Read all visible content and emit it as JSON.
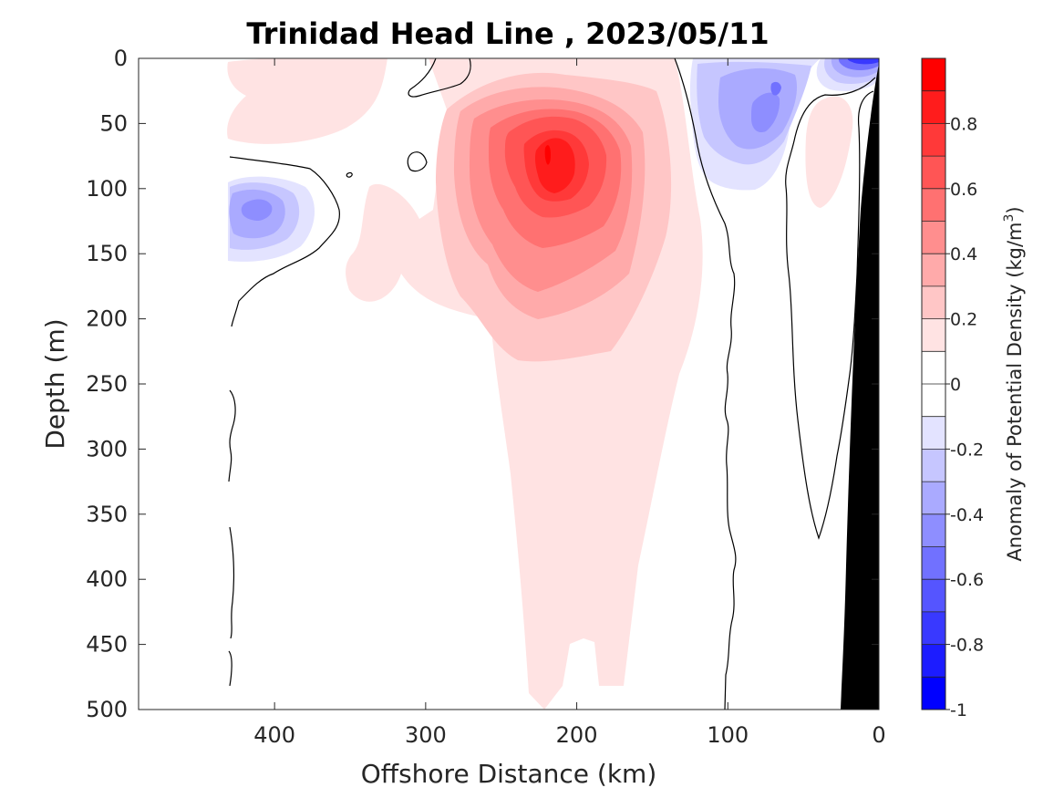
{
  "chart_data": {
    "type": "heatmap",
    "subtype": "filled-contour depth section",
    "title": "Trinidad Head Line , 2023/05/11",
    "xlabel": "Offshore Distance (km)",
    "ylabel": "Depth (m)",
    "xlim": [
      490,
      0
    ],
    "ylim": [
      0,
      500
    ],
    "x_direction": "reversed",
    "y_direction": "reversed (depth increases downward)",
    "x_ticks": [
      400,
      300,
      200,
      100,
      0
    ],
    "y_ticks": [
      0,
      50,
      100,
      150,
      200,
      250,
      300,
      350,
      400,
      450,
      500
    ],
    "colorbar": {
      "label_main": "Anomaly of Potential Density (kg/m",
      "label_sup": "3",
      "label_close": ")",
      "range": [
        -1,
        1
      ],
      "ticks": [
        "0.8",
        "0.6",
        "0.4",
        "0.2",
        "0",
        "-0.2",
        "-0.4",
        "-0.6",
        "-0.8",
        "-1"
      ],
      "tick_values": [
        0.8,
        0.6,
        0.4,
        0.2,
        0,
        -0.2,
        -0.4,
        -0.6,
        -0.8,
        -1
      ],
      "level_step": 0.1,
      "colors": [
        "#0000ff",
        "#1c1cff",
        "#3939ff",
        "#5555ff",
        "#7171ff",
        "#8e8eff",
        "#aaaaff",
        "#c6c6ff",
        "#e3e3ff",
        "#ffffff",
        "#ffffff",
        "#ffe3e3",
        "#ffc6c6",
        "#ffaaaa",
        "#ff8e8e",
        "#ff7171",
        "#ff5555",
        "#ff3939",
        "#ff1c1c",
        "#ff0000"
      ]
    },
    "bathymetry_color": "#000000",
    "features": [
      {
        "kind": "positive anomaly core",
        "distance_km": 218,
        "depth_m": 80,
        "peak_value": 0.95
      },
      {
        "kind": "positive anomaly tongue",
        "distance_km": [
          170,
          270
        ],
        "depth_m": [
          100,
          500
        ],
        "value": 0.1
      },
      {
        "kind": "negative anomaly",
        "distance_km": 410,
        "depth_m": 115,
        "min_value": -0.45
      },
      {
        "kind": "negative anomaly",
        "distance_km": 80,
        "depth_m": 45,
        "min_value": -0.45
      },
      {
        "kind": "negative anomaly",
        "distance_km": 15,
        "depth_m": 5,
        "min_value": -0.6
      },
      {
        "kind": "positive anomaly",
        "distance_km": 40,
        "depth_m": 95,
        "value": 0.15
      }
    ]
  }
}
